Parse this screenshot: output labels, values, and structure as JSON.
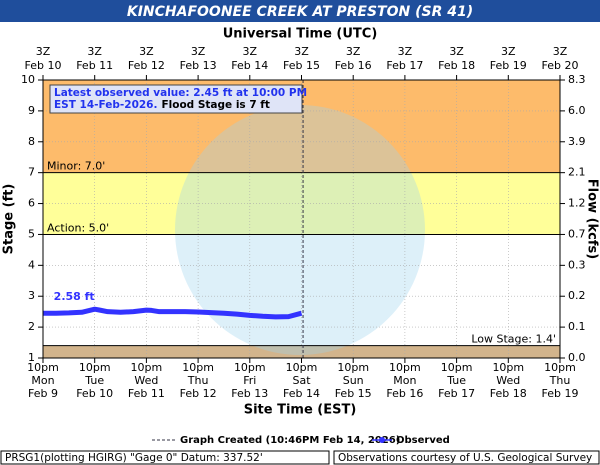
{
  "chart_data": {
    "type": "line",
    "title": "KINCHAFOONEE CREEK AT PRESTON (SR 41)",
    "top_axis_label": "Universal Time (UTC)",
    "x_label": "Site Time (EST)",
    "y_label": "Stage (ft)",
    "y2_label": "Flow (kcfs)",
    "xlim": [
      0,
      10
    ],
    "xticks": [
      {
        "value": 0,
        "label": [
          "10pm",
          "Mon",
          "Feb 9"
        ]
      },
      {
        "value": 1,
        "label": [
          "10pm",
          "Tue",
          "Feb 10"
        ]
      },
      {
        "value": 2,
        "label": [
          "10pm",
          "Wed",
          "Feb 11"
        ]
      },
      {
        "value": 3,
        "label": [
          "10pm",
          "Thu",
          "Feb 12"
        ]
      },
      {
        "value": 4,
        "label": [
          "10pm",
          "Fri",
          "Feb 13"
        ]
      },
      {
        "value": 5,
        "label": [
          "10pm",
          "Sat",
          "Feb 14"
        ]
      },
      {
        "value": 6,
        "label": [
          "10pm",
          "Sun",
          "Feb 15"
        ]
      },
      {
        "value": 7,
        "label": [
          "10pm",
          "Mon",
          "Feb 16"
        ]
      },
      {
        "value": 8,
        "label": [
          "10pm",
          "Tue",
          "Feb 17"
        ]
      },
      {
        "value": 9,
        "label": [
          "10pm",
          "Wed",
          "Feb 18"
        ]
      },
      {
        "value": 10,
        "label": [
          "10pm",
          "Thu",
          "Feb 19"
        ]
      }
    ],
    "x2ticks": [
      {
        "value": 0,
        "label": [
          "3Z",
          "Feb 10"
        ]
      },
      {
        "value": 1,
        "label": [
          "3Z",
          "Feb 11"
        ]
      },
      {
        "value": 2,
        "label": [
          "3Z",
          "Feb 12"
        ]
      },
      {
        "value": 3,
        "label": [
          "3Z",
          "Feb 13"
        ]
      },
      {
        "value": 4,
        "label": [
          "3Z",
          "Feb 14"
        ]
      },
      {
        "value": 5,
        "label": [
          "3Z",
          "Feb 15"
        ]
      },
      {
        "value": 6,
        "label": [
          "3Z",
          "Feb 16"
        ]
      },
      {
        "value": 7,
        "label": [
          "3Z",
          "Feb 17"
        ]
      },
      {
        "value": 8,
        "label": [
          "3Z",
          "Feb 18"
        ]
      },
      {
        "value": 9,
        "label": [
          "3Z",
          "Feb 19"
        ]
      },
      {
        "value": 10,
        "label": [
          "3Z",
          "Feb 20"
        ]
      }
    ],
    "ylim": [
      1,
      10
    ],
    "yticks": [
      1,
      2,
      3,
      4,
      5,
      6,
      7,
      8,
      9,
      10
    ],
    "y2ticks": [
      {
        "value": 1,
        "label": "0.0"
      },
      {
        "value": 2,
        "label": "0.1"
      },
      {
        "value": 3,
        "label": "0.2"
      },
      {
        "value": 4,
        "label": "0.3"
      },
      {
        "value": 5,
        "label": "0.7"
      },
      {
        "value": 6,
        "label": "1.2"
      },
      {
        "value": 7,
        "label": "2.1"
      },
      {
        "value": 8,
        "label": "3.9"
      },
      {
        "value": 9,
        "label": "6.0"
      },
      {
        "value": 10,
        "label": "8.3"
      }
    ],
    "grid": true,
    "bands": [
      {
        "from": 7,
        "to": 10,
        "color": "#fdbb6b"
      },
      {
        "from": 5,
        "to": 7,
        "color": "#ffff99"
      },
      {
        "from": 1,
        "to": 1.4,
        "color": "#d2b48c"
      }
    ],
    "thresholds": [
      {
        "value": 7,
        "label": "Minor: 7.0'",
        "side": "left"
      },
      {
        "value": 5,
        "label": "Action: 5.0'",
        "side": "left"
      },
      {
        "value": 1.4,
        "label": "Low Stage: 1.4'",
        "side": "right"
      }
    ],
    "series": [
      {
        "name": "Observed",
        "color": "#3333ff",
        "x": [
          0,
          0.25,
          0.5,
          0.75,
          1.0,
          1.1,
          1.25,
          1.5,
          1.75,
          2.0,
          2.1,
          2.25,
          2.5,
          2.75,
          3.0,
          3.25,
          3.5,
          3.75,
          4.0,
          4.25,
          4.5,
          4.75,
          5.0
        ],
        "values": [
          2.45,
          2.45,
          2.46,
          2.48,
          2.58,
          2.55,
          2.5,
          2.48,
          2.5,
          2.55,
          2.54,
          2.5,
          2.5,
          2.5,
          2.49,
          2.47,
          2.45,
          2.42,
          2.38,
          2.35,
          2.33,
          2.34,
          2.45
        ],
        "value_labels": [
          null,
          null,
          null,
          null,
          "2.58 ft",
          null,
          null,
          null,
          null,
          null,
          null,
          null,
          null,
          null,
          null,
          null,
          null,
          null,
          null,
          null,
          null,
          null,
          null
        ]
      }
    ],
    "created": {
      "x": 5.03,
      "label": "Graph Created (10:46PM Feb 14, 2026)"
    },
    "info": {
      "line1": "Latest observed value: 2.45 ft at 10:00 PM",
      "line2": "EST 14-Feb-2026.",
      "flood": "Flood Stage is 7 ft"
    },
    "footer_left": "PRSG1(plotting HGIRG) \"Gage 0\" Datum: 337.52'",
    "footer_right": "Observations courtesy of U.S. Geological Survey"
  }
}
